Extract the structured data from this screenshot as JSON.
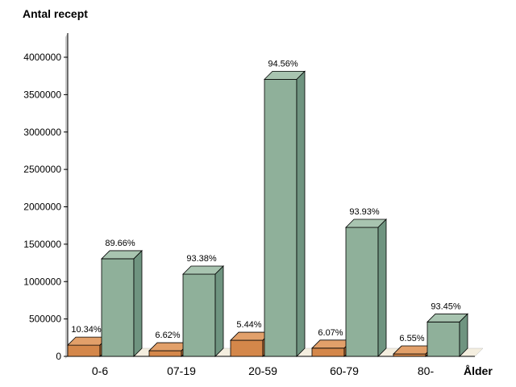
{
  "chart_data": {
    "type": "bar",
    "ylabel": "Antal recept",
    "xlabel": "Ålder",
    "categories": [
      "0-6",
      "07-19",
      "20-59",
      "60-79",
      "80-"
    ],
    "ylim": [
      0,
      4000000
    ],
    "yticks": [
      0,
      500000,
      1000000,
      1500000,
      2000000,
      2500000,
      3000000,
      3500000,
      4000000
    ],
    "series": [
      {
        "values": [
          150000,
          75000,
          215000,
          110000,
          32000
        ],
        "labels": [
          "10.34%",
          "6.62%",
          "5.44%",
          "6.07%",
          "6.55%"
        ],
        "color": "#d4874a",
        "top_color": "#e2a06a",
        "side_color": "#b8703a"
      },
      {
        "values": [
          1305000,
          1100000,
          3705000,
          1725000,
          460000
        ],
        "labels": [
          "89.66%",
          "93.38%",
          "94.56%",
          "93.93%",
          "93.45%"
        ],
        "color": "#8fb09a",
        "top_color": "#a8c4b0",
        "side_color": "#6f9480"
      }
    ],
    "grid": false,
    "legend": "none",
    "style": "3d-bars"
  }
}
